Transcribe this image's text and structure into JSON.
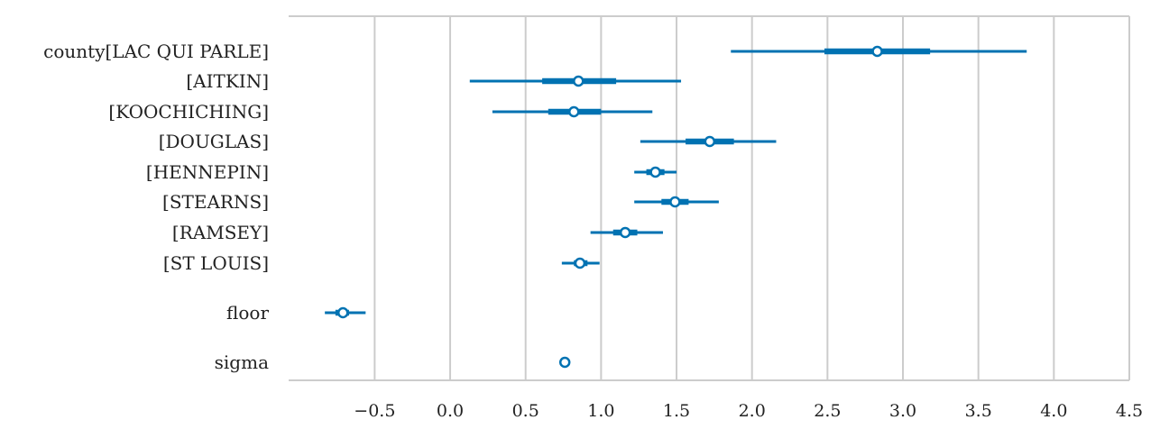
{
  "chart_data": {
    "type": "forest",
    "title": "",
    "xlabel": "",
    "ylabel": "",
    "xlim": [
      -1.07,
      4.5
    ],
    "x_ticks": [
      -0.5,
      0.0,
      0.5,
      1.0,
      1.5,
      2.0,
      2.5,
      3.0,
      3.5,
      4.0,
      4.5
    ],
    "x_tick_labels": [
      "−0.5",
      "0.0",
      "0.5",
      "1.0",
      "1.5",
      "2.0",
      "2.5",
      "3.0",
      "3.5",
      "4.0",
      "4.5"
    ],
    "grid": "vertical",
    "colors": {
      "series": "#0072b2",
      "grid": "#cccccc",
      "text": "#222222"
    },
    "rows": [
      {
        "label": "county[LAC QUI PARLE]",
        "mean": 2.83,
        "iqr": [
          2.48,
          3.18
        ],
        "hdi": [
          1.86,
          3.82
        ],
        "group": "county"
      },
      {
        "label": "[AITKIN]",
        "mean": 0.85,
        "iqr": [
          0.61,
          1.1
        ],
        "hdi": [
          0.13,
          1.53
        ],
        "group": "county"
      },
      {
        "label": "[KOOCHICHING]",
        "mean": 0.82,
        "iqr": [
          0.65,
          1.0
        ],
        "hdi": [
          0.28,
          1.34
        ],
        "group": "county"
      },
      {
        "label": "[DOUGLAS]",
        "mean": 1.72,
        "iqr": [
          1.56,
          1.88
        ],
        "hdi": [
          1.26,
          2.16
        ],
        "group": "county"
      },
      {
        "label": "[HENNEPIN]",
        "mean": 1.36,
        "iqr": [
          1.3,
          1.42
        ],
        "hdi": [
          1.22,
          1.5
        ],
        "group": "county"
      },
      {
        "label": "[STEARNS]",
        "mean": 1.49,
        "iqr": [
          1.4,
          1.58
        ],
        "hdi": [
          1.22,
          1.78
        ],
        "group": "county"
      },
      {
        "label": "[RAMSEY]",
        "mean": 1.16,
        "iqr": [
          1.08,
          1.24
        ],
        "hdi": [
          0.93,
          1.41
        ],
        "group": "county"
      },
      {
        "label": "[ST LOUIS]",
        "mean": 0.86,
        "iqr": [
          0.82,
          0.91
        ],
        "hdi": [
          0.74,
          0.99
        ],
        "group": "county"
      },
      {
        "label": "floor",
        "mean": -0.71,
        "iqr": [
          -0.76,
          -0.67
        ],
        "hdi": [
          -0.83,
          -0.56
        ],
        "group": "floor"
      },
      {
        "label": "sigma",
        "mean": 0.76,
        "iqr": [
          0.75,
          0.77
        ],
        "hdi": [
          0.74,
          0.78
        ],
        "group": "sigma"
      }
    ]
  }
}
